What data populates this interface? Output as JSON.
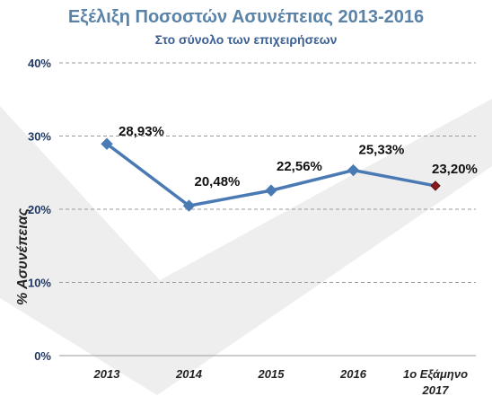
{
  "chart_data": {
    "type": "line",
    "title": "Εξέλιξη Ποσοστών Ασυνέπειας 2013-2016",
    "subtitle": "Στο σύνολο των επιχειρήσεων",
    "ylabel": "% Ασυνέπειας",
    "xlabel": "",
    "ylim": [
      0,
      40
    ],
    "y_ticks": [
      "0%",
      "10%",
      "20%",
      "30%",
      "40%"
    ],
    "categories": [
      "2013",
      "2014",
      "2015",
      "2016",
      "1ο Εξάμηνο 2017"
    ],
    "values": [
      28.93,
      20.48,
      22.56,
      25.33,
      23.2
    ],
    "data_labels": [
      "28,93%",
      "20,48%",
      "22,56%",
      "25,33%",
      "23,20%"
    ],
    "grid": true,
    "colors": {
      "line": "#4a7ab4",
      "highlight": "#8b1a1a",
      "highlight_label": "#c00000",
      "grid": "#9a9a9a"
    }
  }
}
